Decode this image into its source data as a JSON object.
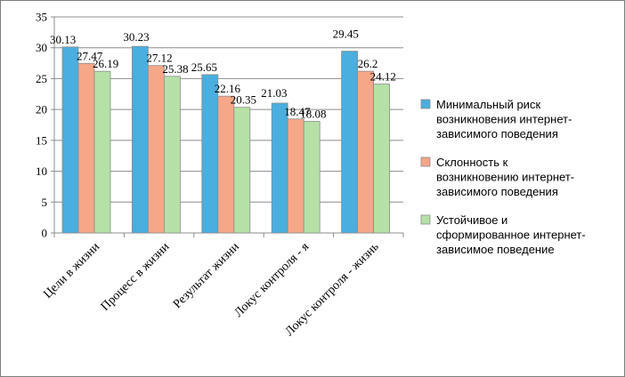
{
  "chart_data": {
    "type": "bar",
    "title": "",
    "xlabel": "",
    "ylabel": "",
    "ylim": [
      0,
      35
    ],
    "yticks": [
      0,
      5,
      10,
      15,
      20,
      25,
      30,
      35
    ],
    "grid": true,
    "legend_position": "right",
    "categories": [
      "Цели в жизни",
      "Процесс в жизни",
      "Результат жизни",
      "Локус контроля - я",
      "Локус контроля - жизнь"
    ],
    "series": [
      {
        "name": "Минимальный риск возникновения интернет-зависимого поведения",
        "legend_lines": [
          "Минимальный риск",
          "возникновения интернет-",
          "зависимого поведения"
        ],
        "color": "#4aaede",
        "values": [
          30.13,
          30.23,
          25.65,
          21.03,
          29.45
        ],
        "labels": [
          "30.13",
          "30.23",
          "25.65",
          "21.03",
          "29.45"
        ]
      },
      {
        "name": "Склонность к возникновению интернет-зависимого поведения",
        "legend_lines": [
          "Склонность к",
          "возникновению интернет-",
          "зависимого поведения"
        ],
        "color": "#f6a788",
        "values": [
          27.47,
          27.12,
          22.16,
          18.47,
          26.2
        ],
        "labels": [
          "27.47",
          "27.12",
          "22.16",
          "18.47",
          "26.2"
        ]
      },
      {
        "name": "Устойчивое и сформированное интернет-зависимое поведение",
        "legend_lines": [
          "Устойчивое и",
          "сформированное интернет-",
          "зависимое поведение"
        ],
        "color": "#b5e1a6",
        "values": [
          26.19,
          25.38,
          20.35,
          18.08,
          24.12
        ],
        "labels": [
          "26.19",
          "25.38",
          "20.35",
          "18.08",
          "24.12"
        ]
      }
    ]
  }
}
